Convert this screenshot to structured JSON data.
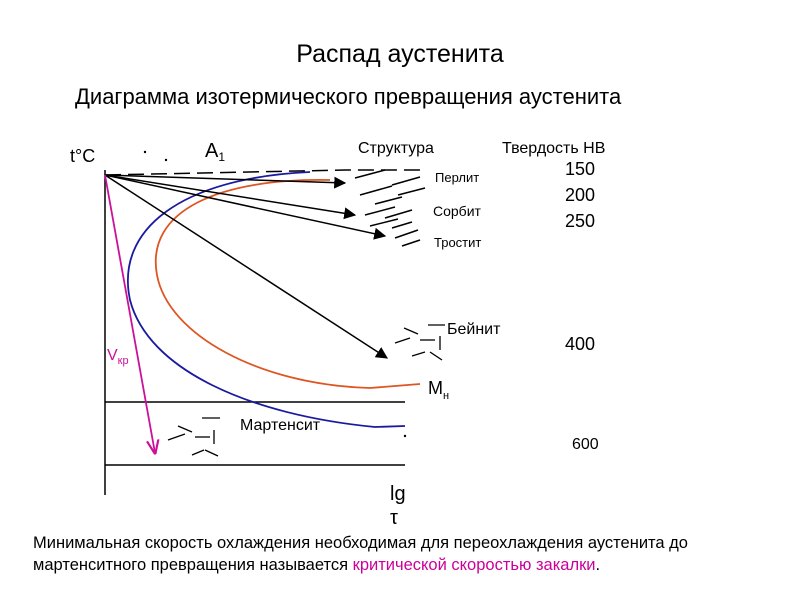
{
  "title": "Распад аустенита",
  "subtitle": "Диаграмма изотермического превращения аустенита",
  "axes": {
    "y_label": "t°C",
    "x_label_top": "lg",
    "x_label_bottom": "τ"
  },
  "labels": {
    "a1": "A",
    "a1_sub": "1",
    "vkr": "V",
    "vkr_sub": "кр",
    "mn": "M",
    "mn_sub": "н",
    "structure_header": "Структура",
    "hardness_header": "Твердость НВ"
  },
  "structures": [
    {
      "name": "Перлит",
      "hardness": "150"
    },
    {
      "name": "Сорбит",
      "hardness": "200"
    },
    {
      "name": "Тростит",
      "hardness": "250"
    },
    {
      "name": "Бейнит",
      "hardness": "400"
    },
    {
      "name": "Мартенсит",
      "hardness": "600"
    }
  ],
  "colors": {
    "curve_start": "#1a1aa0",
    "curve_end": "#dd5522",
    "critical_rate": "#cc1199",
    "highlight": "#cc0099"
  },
  "caption": {
    "text": "Минимальная скорость охлаждения необходимая для переохлаждения аустенита до мартенситного превращения  называется ",
    "highlight": "критической скоростью закалки",
    "tail": "."
  }
}
